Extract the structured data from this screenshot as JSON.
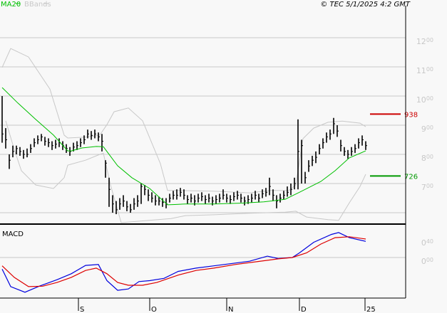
{
  "header": {
    "legend_ma": "MA20",
    "legend_bbands": "BBands",
    "copyright": "© TEC 5/1/2025 4:2 GMT"
  },
  "colors": {
    "ma20": "#00c000",
    "bbands": "#c8c8c8",
    "bars": "#000000",
    "macd": "#0000dd",
    "signal": "#dd0000",
    "resistance": "#cc0000",
    "support": "#009900",
    "grid": "#c8c8c8"
  },
  "chart_data": [
    {
      "type": "bar",
      "subtype": "ohlc-price",
      "ylim": [
        560,
        1230
      ],
      "y_ticks": [
        {
          "value": 1200,
          "main": "12",
          "sup": "00"
        },
        {
          "value": 1100,
          "main": "11",
          "sup": "00"
        },
        {
          "value": 1000,
          "main": "10",
          "sup": "00"
        },
        {
          "value": 900,
          "main": "9",
          "sup": "00"
        },
        {
          "value": 800,
          "main": "8",
          "sup": "00"
        },
        {
          "value": 700,
          "main": "7",
          "sup": "00"
        }
      ],
      "grid_values": [
        1200,
        1100,
        1000,
        900,
        800,
        700,
        600
      ],
      "x_ticks": [
        {
          "bar": 21.4,
          "label": "S"
        },
        {
          "bar": 41.4,
          "label": "O"
        },
        {
          "bar": 63,
          "label": "N"
        },
        {
          "bar": 83.4,
          "label": "D"
        },
        {
          "bar": 101.8,
          "label": "25"
        }
      ],
      "bars_hlc": [
        [
          1000,
          840,
          870
        ],
        [
          890,
          820,
          850
        ],
        [
          800,
          750,
          780
        ],
        [
          830,
          790,
          810
        ],
        [
          830,
          800,
          820
        ],
        [
          825,
          795,
          810
        ],
        [
          815,
          785,
          800
        ],
        [
          820,
          790,
          800
        ],
        [
          835,
          805,
          820
        ],
        [
          855,
          825,
          840
        ],
        [
          865,
          835,
          850
        ],
        [
          870,
          845,
          860
        ],
        [
          860,
          830,
          845
        ],
        [
          855,
          825,
          840
        ],
        [
          845,
          815,
          830
        ],
        [
          850,
          820,
          835
        ],
        [
          855,
          825,
          840
        ],
        [
          845,
          815,
          830
        ],
        [
          835,
          805,
          820
        ],
        [
          825,
          795,
          810
        ],
        [
          840,
          810,
          825
        ],
        [
          845,
          815,
          830
        ],
        [
          855,
          825,
          840
        ],
        [
          865,
          835,
          850
        ],
        [
          885,
          855,
          870
        ],
        [
          880,
          850,
          865
        ],
        [
          885,
          855,
          870
        ],
        [
          875,
          845,
          860
        ],
        [
          870,
          810,
          845
        ],
        [
          780,
          720,
          770
        ],
        [
          720,
          620,
          680
        ],
        [
          660,
          600,
          630
        ],
        [
          640,
          595,
          610
        ],
        [
          650,
          610,
          630
        ],
        [
          660,
          620,
          640
        ],
        [
          640,
          605,
          620
        ],
        [
          630,
          600,
          610
        ],
        [
          650,
          610,
          630
        ],
        [
          660,
          620,
          640
        ],
        [
          700,
          630,
          690
        ],
        [
          695,
          660,
          680
        ],
        [
          680,
          640,
          660
        ],
        [
          670,
          635,
          650
        ],
        [
          660,
          625,
          640
        ],
        [
          655,
          625,
          640
        ],
        [
          650,
          620,
          635
        ],
        [
          650,
          615,
          630
        ],
        [
          665,
          635,
          650
        ],
        [
          675,
          645,
          660
        ],
        [
          680,
          645,
          660
        ],
        [
          685,
          655,
          670
        ],
        [
          680,
          645,
          660
        ],
        [
          660,
          630,
          645
        ],
        [
          665,
          635,
          650
        ],
        [
          660,
          625,
          640
        ],
        [
          665,
          635,
          650
        ],
        [
          670,
          640,
          655
        ],
        [
          660,
          630,
          645
        ],
        [
          665,
          635,
          650
        ],
        [
          655,
          625,
          640
        ],
        [
          660,
          630,
          645
        ],
        [
          665,
          635,
          650
        ],
        [
          680,
          645,
          660
        ],
        [
          665,
          635,
          650
        ],
        [
          660,
          630,
          645
        ],
        [
          670,
          640,
          655
        ],
        [
          675,
          645,
          660
        ],
        [
          665,
          635,
          650
        ],
        [
          655,
          625,
          640
        ],
        [
          660,
          630,
          645
        ],
        [
          665,
          635,
          650
        ],
        [
          675,
          645,
          660
        ],
        [
          665,
          635,
          650
        ],
        [
          680,
          650,
          665
        ],
        [
          685,
          655,
          670
        ],
        [
          720,
          660,
          690
        ],
        [
          680,
          640,
          660
        ],
        [
          660,
          615,
          640
        ],
        [
          665,
          635,
          650
        ],
        [
          675,
          645,
          660
        ],
        [
          690,
          655,
          670
        ],
        [
          700,
          660,
          680
        ],
        [
          720,
          680,
          700
        ],
        [
          920,
          680,
          810
        ],
        [
          850,
          700,
          830
        ],
        [
          740,
          700,
          720
        ],
        [
          780,
          740,
          760
        ],
        [
          795,
          760,
          780
        ],
        [
          810,
          770,
          790
        ],
        [
          835,
          800,
          820
        ],
        [
          855,
          820,
          840
        ],
        [
          875,
          840,
          860
        ],
        [
          885,
          850,
          870
        ],
        [
          925,
          870,
          905
        ],
        [
          900,
          860,
          880
        ],
        [
          850,
          810,
          830
        ],
        [
          825,
          795,
          810
        ],
        [
          815,
          785,
          800
        ],
        [
          825,
          795,
          810
        ],
        [
          835,
          805,
          820
        ],
        [
          855,
          820,
          840
        ],
        [
          865,
          830,
          850
        ],
        [
          845,
          815,
          830
        ]
      ],
      "ma20": [
        [
          0,
          1029
        ],
        [
          4.4,
          976
        ],
        [
          9.4,
          920
        ],
        [
          14.4,
          866
        ],
        [
          18.4,
          812
        ],
        [
          19.4,
          812
        ],
        [
          22.4,
          822
        ],
        [
          26.4,
          827
        ],
        [
          28.4,
          826
        ],
        [
          32.4,
          761
        ],
        [
          36.4,
          720
        ],
        [
          41.4,
          683
        ],
        [
          46.4,
          627
        ],
        [
          48.4,
          628
        ],
        [
          51.4,
          630
        ],
        [
          59.4,
          630
        ],
        [
          67.4,
          633
        ],
        [
          73.4,
          637
        ],
        [
          79.4,
          646
        ],
        [
          83.4,
          670
        ],
        [
          89.4,
          707
        ],
        [
          93.4,
          744
        ],
        [
          97.4,
          788
        ],
        [
          102,
          812
        ]
      ],
      "bbands_upper": [
        [
          0,
          1098
        ],
        [
          2.4,
          1163
        ],
        [
          7.4,
          1134
        ],
        [
          13.4,
          1024
        ],
        [
          17.4,
          866
        ],
        [
          18.4,
          856
        ],
        [
          23.4,
          859
        ],
        [
          27.4,
          866
        ],
        [
          29.4,
          902
        ],
        [
          31.4,
          946
        ],
        [
          35.4,
          959
        ],
        [
          39.4,
          915
        ],
        [
          44.4,
          768
        ],
        [
          46.4,
          676
        ],
        [
          49.4,
          676
        ],
        [
          59.4,
          674
        ],
        [
          69.4,
          668
        ],
        [
          75.4,
          676
        ],
        [
          80.4,
          676
        ],
        [
          82.4,
          695
        ],
        [
          84.4,
          854
        ],
        [
          87.4,
          890
        ],
        [
          91.4,
          910
        ],
        [
          95.4,
          914
        ],
        [
          100.4,
          907
        ],
        [
          102,
          895
        ]
      ],
      "bbands_lower": [
        [
          1,
          915
        ],
        [
          3.4,
          817
        ],
        [
          5.4,
          744
        ],
        [
          9.4,
          695
        ],
        [
          14.4,
          683
        ],
        [
          17.4,
          720
        ],
        [
          18.4,
          763
        ],
        [
          23.4,
          780
        ],
        [
          27.4,
          800
        ],
        [
          28.4,
          804
        ],
        [
          30.4,
          695
        ],
        [
          33.4,
          561
        ],
        [
          47.4,
          580
        ],
        [
          51.4,
          590
        ],
        [
          59.4,
          593
        ],
        [
          69.4,
          598
        ],
        [
          79.4,
          602
        ],
        [
          82.4,
          605
        ],
        [
          85.4,
          585
        ],
        [
          91.4,
          576
        ],
        [
          94.4,
          574
        ],
        [
          97.4,
          634
        ],
        [
          100.4,
          690
        ],
        [
          102,
          732
        ]
      ],
      "levels": [
        {
          "value": 938,
          "label": "938",
          "color": "#cc0000"
        },
        {
          "value": 726,
          "label": "726",
          "color": "#009900"
        }
      ]
    },
    {
      "type": "line",
      "title": "MACD",
      "ylim": [
        -0.88,
        0.6
      ],
      "y_ticks": [
        {
          "value": 0.4,
          "main": "0",
          "sup": "40"
        },
        {
          "value": 0.0,
          "main": "0",
          "sup": "00"
        }
      ],
      "grid_values": [
        0.0
      ],
      "series": [
        {
          "key": "macd",
          "points": [
            [
              0,
              -0.25
            ],
            [
              2.4,
              -0.63
            ],
            [
              6.4,
              -0.75
            ],
            [
              10.4,
              -0.62
            ],
            [
              15.4,
              -0.48
            ],
            [
              19.4,
              -0.35
            ],
            [
              23.4,
              -0.17
            ],
            [
              27,
              -0.15
            ],
            [
              29.4,
              -0.5
            ],
            [
              32.4,
              -0.71
            ],
            [
              35.4,
              -0.68
            ],
            [
              38.4,
              -0.52
            ],
            [
              41.4,
              -0.5
            ],
            [
              45.4,
              -0.45
            ],
            [
              49.4,
              -0.3
            ],
            [
              54.4,
              -0.23
            ],
            [
              59.4,
              -0.18
            ],
            [
              65.4,
              -0.12
            ],
            [
              69.4,
              -0.08
            ],
            [
              74.4,
              0.03
            ],
            [
              77.4,
              -0.02
            ],
            [
              81.4,
              0.0
            ],
            [
              83.4,
              0.1
            ],
            [
              87.4,
              0.33
            ],
            [
              92.4,
              0.5
            ],
            [
              94.4,
              0.54
            ],
            [
              97.4,
              0.43
            ],
            [
              102,
              0.35
            ]
          ]
        },
        {
          "key": "signal",
          "points": [
            [
              0,
              -0.18
            ],
            [
              3.4,
              -0.43
            ],
            [
              7.4,
              -0.63
            ],
            [
              11.4,
              -0.62
            ],
            [
              15.4,
              -0.54
            ],
            [
              19.4,
              -0.43
            ],
            [
              23.4,
              -0.28
            ],
            [
              26.4,
              -0.23
            ],
            [
              29.4,
              -0.35
            ],
            [
              32.4,
              -0.54
            ],
            [
              35.4,
              -0.6
            ],
            [
              39.4,
              -0.6
            ],
            [
              43.4,
              -0.54
            ],
            [
              49.4,
              -0.38
            ],
            [
              54.4,
              -0.28
            ],
            [
              59.4,
              -0.23
            ],
            [
              65.4,
              -0.15
            ],
            [
              71.4,
              -0.09
            ],
            [
              77.4,
              -0.03
            ],
            [
              81.4,
              0.0
            ],
            [
              85.4,
              0.1
            ],
            [
              89.4,
              0.29
            ],
            [
              93.4,
              0.43
            ],
            [
              97.4,
              0.45
            ],
            [
              102,
              0.4
            ]
          ]
        }
      ]
    }
  ]
}
